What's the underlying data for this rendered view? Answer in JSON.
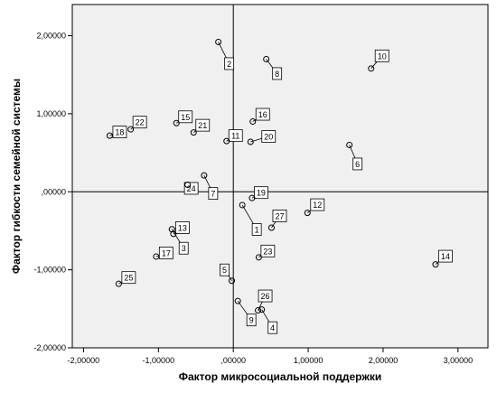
{
  "chart_data": {
    "type": "scatter",
    "xlabel": "Фактор микросоциальной поддержки",
    "ylabel": "Фактор гибкости семейной системы",
    "xlim": [
      -2.15,
      3.4
    ],
    "ylim": [
      -2.0,
      2.4
    ],
    "x_ticks": [
      -2,
      -1,
      0,
      1,
      2,
      3
    ],
    "y_ticks": [
      -2,
      -1,
      0,
      1,
      2
    ],
    "x_tick_labels": [
      "-2,00000",
      "-1,00000",
      ",00000",
      "1,00000",
      "2,00000",
      "3,00000"
    ],
    "y_tick_labels": [
      "-2,00000",
      "-1,00000",
      ",00000",
      "1,00000",
      "2,00000"
    ],
    "reference_lines": {
      "x": 0,
      "y": 0
    },
    "grid": false,
    "plot_background": "#f0f0f0",
    "points": [
      {
        "label": "1",
        "x": 0.12,
        "y": -0.17
      },
      {
        "label": "2",
        "x": -0.2,
        "y": 1.92
      },
      {
        "label": "3",
        "x": -0.82,
        "y": -0.48
      },
      {
        "label": "4",
        "x": 0.38,
        "y": -1.51
      },
      {
        "label": "5",
        "x": -0.02,
        "y": -1.14
      },
      {
        "label": "6",
        "x": 1.55,
        "y": 0.6
      },
      {
        "label": "7",
        "x": -0.39,
        "y": 0.21
      },
      {
        "label": "8",
        "x": 0.44,
        "y": 1.7
      },
      {
        "label": "9",
        "x": 0.06,
        "y": -1.4
      },
      {
        "label": "10",
        "x": 1.84,
        "y": 1.58
      },
      {
        "label": "11",
        "x": -0.09,
        "y": 0.65
      },
      {
        "label": "12",
        "x": 0.99,
        "y": -0.27
      },
      {
        "label": "13",
        "x": -0.8,
        "y": -0.54
      },
      {
        "label": "14",
        "x": 2.7,
        "y": -0.93
      },
      {
        "label": "15",
        "x": -0.76,
        "y": 0.88
      },
      {
        "label": "16",
        "x": 0.26,
        "y": 0.9
      },
      {
        "label": "17",
        "x": -1.03,
        "y": -0.83
      },
      {
        "label": "18",
        "x": -1.65,
        "y": 0.72
      },
      {
        "label": "19",
        "x": 0.25,
        "y": -0.08
      },
      {
        "label": "20",
        "x": 0.23,
        "y": 0.64
      },
      {
        "label": "21",
        "x": -0.53,
        "y": 0.76
      },
      {
        "label": "22",
        "x": -1.37,
        "y": 0.8
      },
      {
        "label": "23",
        "x": 0.34,
        "y": -0.84
      },
      {
        "label": "24",
        "x": -0.61,
        "y": 0.09
      },
      {
        "label": "25",
        "x": -1.53,
        "y": -1.18
      },
      {
        "label": "26",
        "x": 0.33,
        "y": -1.52
      },
      {
        "label": "27",
        "x": 0.51,
        "y": -0.46
      }
    ],
    "label_offsets": {
      "1": [
        16,
        27
      ],
      "2": [
        12,
        24
      ],
      "3": [
        13,
        21
      ],
      "4": [
        12,
        20
      ],
      "5": [
        -8,
        -12
      ],
      "6": [
        9,
        21
      ],
      "7": [
        10,
        20
      ],
      "8": [
        12,
        16
      ],
      "9": [
        15,
        21
      ],
      "10": [
        12,
        -14
      ],
      "11": [
        10,
        -6
      ],
      "12": [
        11,
        -9
      ],
      "13": [
        10,
        -7
      ],
      "14": [
        11,
        -9
      ],
      "15": [
        10,
        -7
      ],
      "16": [
        11,
        -8
      ],
      "17": [
        11,
        -4
      ],
      "18": [
        11,
        -4
      ],
      "19": [
        10,
        -6
      ],
      "20": [
        20,
        -6
      ],
      "21": [
        10,
        -8
      ],
      "22": [
        10,
        -8
      ],
      "23": [
        10,
        -7
      ],
      "24": [
        4,
        4
      ],
      "25": [
        11,
        -7
      ],
      "26": [
        8,
        -16
      ],
      "27": [
        9,
        -13
      ]
    }
  }
}
